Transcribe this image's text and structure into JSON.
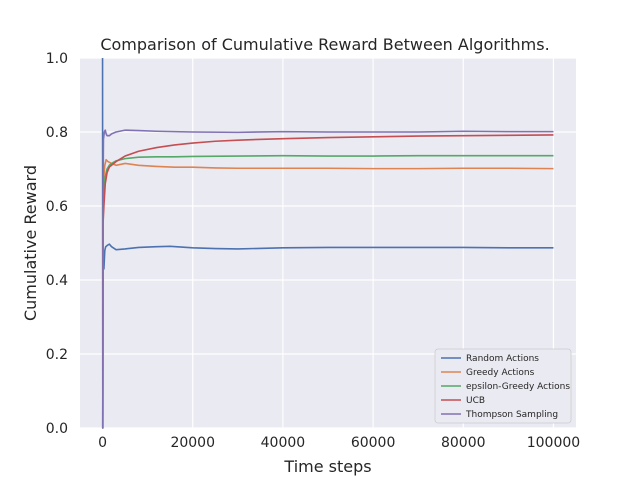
{
  "chart_data": {
    "type": "line",
    "title": "Comparison of Cumulative Reward Between Algorithms.",
    "xlabel": "Time steps",
    "ylabel": "Cumulative Reward",
    "xlim": [
      -5000,
      105000
    ],
    "ylim": [
      0.0,
      1.0
    ],
    "xticks": [
      0,
      20000,
      40000,
      60000,
      80000,
      100000
    ],
    "xtick_labels": [
      "0",
      "20000",
      "40000",
      "60000",
      "80000",
      "100000"
    ],
    "yticks": [
      0.0,
      0.2,
      0.4,
      0.6,
      0.8,
      1.0
    ],
    "ytick_labels": [
      "0.0",
      "0.2",
      "0.4",
      "0.6",
      "0.8",
      "1.0"
    ],
    "grid": true,
    "legend_position": "lower-right",
    "series": [
      {
        "name": "Random Actions",
        "color": "#4c72b0",
        "x": [
          0,
          50,
          100,
          300,
          500,
          700,
          1000,
          1500,
          2000,
          3000,
          5000,
          8000,
          12000,
          15000,
          20000,
          25000,
          30000,
          40000,
          50000,
          60000,
          70000,
          80000,
          90000,
          100000
        ],
        "y": [
          1.0,
          0.0,
          0.44,
          0.43,
          0.48,
          0.49,
          0.493,
          0.497,
          0.49,
          0.482,
          0.484,
          0.488,
          0.49,
          0.491,
          0.487,
          0.485,
          0.484,
          0.487,
          0.488,
          0.488,
          0.488,
          0.488,
          0.487,
          0.487
        ]
      },
      {
        "name": "Greedy Actions",
        "color": "#dd8452",
        "x": [
          0,
          50,
          100,
          300,
          500,
          800,
          1200,
          2000,
          3000,
          5000,
          8000,
          12000,
          16000,
          20000,
          25000,
          30000,
          40000,
          50000,
          60000,
          70000,
          80000,
          90000,
          100000
        ],
        "y": [
          0.0,
          0.0,
          0.55,
          0.68,
          0.71,
          0.725,
          0.72,
          0.715,
          0.71,
          0.715,
          0.71,
          0.707,
          0.705,
          0.705,
          0.703,
          0.702,
          0.702,
          0.702,
          0.701,
          0.701,
          0.702,
          0.702,
          0.701
        ]
      },
      {
        "name": "epsilon-Greedy Actions",
        "color": "#55a868",
        "x": [
          0,
          50,
          100,
          300,
          600,
          1000,
          1500,
          2000,
          3000,
          5000,
          8000,
          12000,
          16000,
          20000,
          30000,
          40000,
          50000,
          60000,
          70000,
          80000,
          90000,
          100000
        ],
        "y": [
          0.0,
          0.0,
          0.6,
          0.65,
          0.68,
          0.7,
          0.71,
          0.715,
          0.722,
          0.728,
          0.732,
          0.733,
          0.733,
          0.734,
          0.735,
          0.736,
          0.735,
          0.735,
          0.736,
          0.736,
          0.736,
          0.736
        ]
      },
      {
        "name": "UCB",
        "color": "#c44e52",
        "x": [
          0,
          50,
          100,
          300,
          600,
          1000,
          1500,
          2000,
          3000,
          5000,
          8000,
          12000,
          16000,
          20000,
          25000,
          30000,
          40000,
          50000,
          60000,
          70000,
          80000,
          90000,
          100000
        ],
        "y": [
          0.0,
          0.0,
          0.55,
          0.6,
          0.66,
          0.69,
          0.705,
          0.71,
          0.72,
          0.735,
          0.748,
          0.758,
          0.765,
          0.77,
          0.775,
          0.778,
          0.782,
          0.785,
          0.787,
          0.789,
          0.79,
          0.791,
          0.792
        ]
      },
      {
        "name": "Thompson Sampling",
        "color": "#8172b3",
        "x": [
          0,
          50,
          100,
          200,
          400,
          600,
          800,
          1000,
          1500,
          2000,
          3000,
          5000,
          8000,
          12000,
          16000,
          20000,
          30000,
          40000,
          50000,
          60000,
          70000,
          80000,
          90000,
          100000
        ],
        "y": [
          0.0,
          0.0,
          0.6,
          0.78,
          0.8,
          0.805,
          0.795,
          0.79,
          0.79,
          0.795,
          0.8,
          0.805,
          0.804,
          0.802,
          0.801,
          0.8,
          0.799,
          0.801,
          0.8,
          0.8,
          0.8,
          0.802,
          0.801,
          0.801
        ]
      }
    ]
  }
}
